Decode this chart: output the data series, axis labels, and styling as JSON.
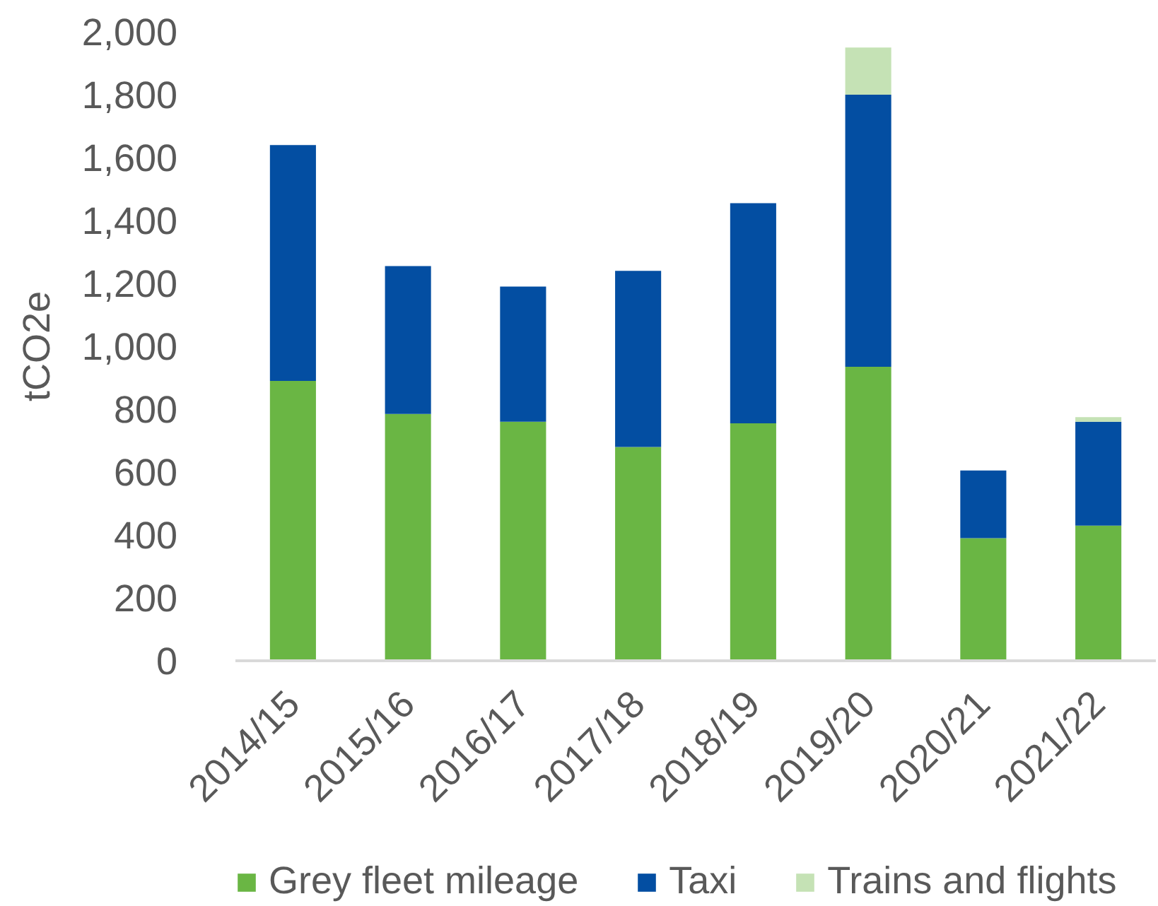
{
  "chart_data": {
    "type": "bar",
    "stacked": true,
    "ylabel": "tCO2e",
    "categories": [
      "2014/15",
      "2015/16",
      "2016/17",
      "2017/18",
      "2018/19",
      "2019/20",
      "2020/21",
      "2021/22"
    ],
    "series": [
      {
        "name": "Grey fleet mileage",
        "color": "#6ab644",
        "values": [
          890,
          785,
          760,
          680,
          755,
          935,
          390,
          430
        ]
      },
      {
        "name": "Taxi",
        "color": "#034ea2",
        "values": [
          750,
          470,
          430,
          560,
          700,
          865,
          215,
          330
        ]
      },
      {
        "name": "Trains and flights",
        "color": "#c5e2b5",
        "values": [
          null,
          null,
          null,
          null,
          null,
          150,
          null,
          15
        ]
      }
    ],
    "ylim": [
      0,
      2000
    ],
    "yticks": [
      0,
      200,
      400,
      600,
      800,
      {
        "value": 1000,
        "label": "1,000"
      },
      {
        "value": 1200,
        "label": "1,200"
      },
      {
        "value": 1400,
        "label": "1,400"
      },
      {
        "value": 1600,
        "label": "1,600"
      },
      {
        "value": 1800,
        "label": "1,800"
      },
      {
        "value": 2000,
        "label": "2,000"
      }
    ],
    "grid": false,
    "legend": "bottom"
  }
}
